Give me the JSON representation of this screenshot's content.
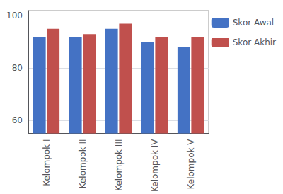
{
  "chart_data": {
    "type": "bar",
    "categories": [
      "Kelompok I",
      "Kelompok II",
      "Kelompok III",
      "Kelompok IV",
      "Kelompok V"
    ],
    "series": [
      {
        "name": "Skor Awal",
        "color": "#4472C4",
        "values": [
          92,
          92,
          95,
          90,
          88
        ]
      },
      {
        "name": "Skor Akhir",
        "color": "#C0504D",
        "values": [
          95,
          93,
          97,
          92,
          92
        ]
      }
    ],
    "ylim": [
      55,
      102
    ],
    "yticks": [
      60,
      80,
      100
    ],
    "grid": true,
    "legend": "right"
  }
}
